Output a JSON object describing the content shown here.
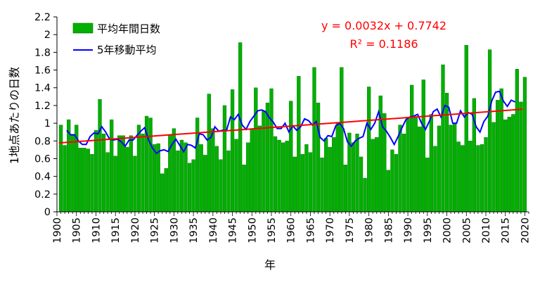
{
  "chart_data": {
    "type": "bar",
    "xlabel": "年",
    "ylabel": "1地点あたりの日数",
    "ylim": [
      0,
      2.2
    ],
    "ytick_step": 0.2,
    "ytick_labels": [
      "0",
      "0.2",
      "0.4",
      "0.6",
      "0.8",
      "1",
      "1.2",
      "1.4",
      "1.6",
      "1.8",
      "2",
      "2.2"
    ],
    "xlim": [
      1900,
      2021
    ],
    "xtick_labels": [
      "1900",
      "1905",
      "1910",
      "1915",
      "1920",
      "1925",
      "1930",
      "1935",
      "1940",
      "1945",
      "1950",
      "1955",
      "1960",
      "1965",
      "1970",
      "1975",
      "1980",
      "1985",
      "1990",
      "1995",
      "2000",
      "2005",
      "2010",
      "2015",
      "2020"
    ],
    "grid": false,
    "legend_position": "top-left",
    "series": [
      {
        "name": "平均年間日数",
        "kind": "bar",
        "color": "#00b000",
        "x": [
          1901,
          1902,
          1903,
          1904,
          1905,
          1906,
          1907,
          1908,
          1909,
          1910,
          1911,
          1912,
          1913,
          1914,
          1915,
          1916,
          1917,
          1918,
          1919,
          1920,
          1921,
          1922,
          1923,
          1924,
          1925,
          1926,
          1927,
          1928,
          1929,
          1930,
          1931,
          1932,
          1933,
          1934,
          1935,
          1936,
          1937,
          1938,
          1939,
          1940,
          1941,
          1942,
          1943,
          1944,
          1945,
          1946,
          1947,
          1948,
          1949,
          1950,
          1951,
          1952,
          1953,
          1954,
          1955,
          1956,
          1957,
          1958,
          1959,
          1960,
          1961,
          1962,
          1963,
          1964,
          1965,
          1966,
          1967,
          1968,
          1969,
          1970,
          1971,
          1972,
          1973,
          1974,
          1975,
          1976,
          1977,
          1978,
          1979,
          1980,
          1981,
          1982,
          1983,
          1984,
          1985,
          1986,
          1987,
          1988,
          1989,
          1990,
          1991,
          1992,
          1993,
          1994,
          1995,
          1996,
          1997,
          1998,
          1999,
          2000,
          2001,
          2002,
          2003,
          2004,
          2005,
          2006,
          2007,
          2008,
          2009,
          2010,
          2011,
          2012,
          2013,
          2014,
          2015,
          2016,
          2017,
          2018,
          2019,
          2020
        ],
        "values": [
          0.98,
          0.75,
          1.04,
          0.86,
          0.98,
          0.72,
          0.72,
          0.71,
          0.65,
          0.92,
          1.27,
          0.88,
          0.67,
          1.04,
          0.63,
          0.86,
          0.86,
          0.73,
          0.86,
          0.63,
          0.98,
          0.88,
          1.08,
          1.06,
          0.76,
          0.77,
          0.43,
          0.49,
          0.87,
          0.94,
          0.69,
          0.81,
          0.78,
          0.55,
          0.59,
          1.06,
          0.76,
          0.64,
          1.33,
          0.94,
          0.74,
          0.59,
          1.2,
          0.69,
          1.38,
          0.82,
          1.91,
          0.53,
          0.78,
          0.94,
          1.4,
          0.97,
          1.14,
          1.23,
          1.39,
          0.85,
          0.81,
          0.78,
          0.8,
          1.25,
          0.62,
          1.53,
          0.65,
          0.76,
          0.67,
          1.63,
          1.23,
          0.61,
          0.83,
          0.73,
          0.84,
          1.0,
          1.63,
          0.53,
          0.89,
          0.78,
          0.88,
          0.62,
          0.38,
          1.41,
          0.82,
          0.84,
          1.31,
          1.11,
          0.47,
          0.7,
          0.65,
          0.98,
          0.88,
          1.07,
          1.43,
          1.07,
          0.96,
          1.49,
          0.61,
          1.1,
          0.74,
          0.97,
          1.66,
          1.34,
          0.98,
          1.0,
          0.79,
          0.75,
          1.88,
          0.8,
          1.28,
          0.75,
          0.76,
          0.84,
          1.83,
          1.01,
          1.26,
          1.39,
          1.04,
          1.07,
          1.1,
          1.61,
          1.24,
          1.52
        ]
      },
      {
        "name": "5年移動平均",
        "kind": "line",
        "color": "#0000ff",
        "x": [
          1903,
          1904,
          1905,
          1906,
          1907,
          1908,
          1909,
          1910,
          1911,
          1912,
          1913,
          1914,
          1915,
          1916,
          1917,
          1918,
          1919,
          1920,
          1921,
          1922,
          1923,
          1924,
          1925,
          1926,
          1927,
          1928,
          1929,
          1930,
          1931,
          1932,
          1933,
          1934,
          1935,
          1936,
          1937,
          1938,
          1939,
          1940,
          1941,
          1942,
          1943,
          1944,
          1945,
          1946,
          1947,
          1948,
          1949,
          1950,
          1951,
          1952,
          1953,
          1954,
          1955,
          1956,
          1957,
          1958,
          1959,
          1960,
          1961,
          1962,
          1963,
          1964,
          1965,
          1966,
          1967,
          1968,
          1969,
          1970,
          1971,
          1972,
          1973,
          1974,
          1975,
          1976,
          1977,
          1978,
          1979,
          1980,
          1981,
          1982,
          1983,
          1984,
          1985,
          1986,
          1987,
          1988,
          1989,
          1990,
          1991,
          1992,
          1993,
          1994,
          1995,
          1996,
          1997,
          1998,
          1999,
          2000,
          2001,
          2002,
          2003,
          2004,
          2005,
          2006,
          2007,
          2008,
          2009,
          2010,
          2011,
          2012,
          2013,
          2014,
          2015,
          2016,
          2017,
          2018
        ],
        "values": [
          0.92,
          0.87,
          0.87,
          0.8,
          0.76,
          0.76,
          0.85,
          0.89,
          0.88,
          0.96,
          0.9,
          0.82,
          0.81,
          0.82,
          0.79,
          0.74,
          0.81,
          0.81,
          0.86,
          0.91,
          0.95,
          0.81,
          0.72,
          0.66,
          0.69,
          0.7,
          0.68,
          0.76,
          0.82,
          0.75,
          0.68,
          0.76,
          0.75,
          0.72,
          0.88,
          0.87,
          0.81,
          0.84,
          0.96,
          0.91,
          0.92,
          0.92,
          1.07,
          1.04,
          1.1,
          0.98,
          0.93,
          1.02,
          1.08,
          1.14,
          1.15,
          1.13,
          1.06,
          1.01,
          0.94,
          0.94,
          1.0,
          0.9,
          0.97,
          0.92,
          0.96,
          1.05,
          1.03,
          0.98,
          1.02,
          0.84,
          0.8,
          0.86,
          0.85,
          0.97,
          1.0,
          0.94,
          0.79,
          0.74,
          0.8,
          0.83,
          0.85,
          1.0,
          0.93,
          1.0,
          1.13,
          0.96,
          0.91,
          0.84,
          0.76,
          0.85,
          0.95,
          1.04,
          1.07,
          1.08,
          1.1,
          1.0,
          0.93,
          1.02,
          1.13,
          1.16,
          1.07,
          1.2,
          1.18,
          1.0,
          1.0,
          1.14,
          1.07,
          1.12,
          1.1,
          0.96,
          0.9,
          1.02,
          1.08,
          1.25,
          1.35,
          1.36,
          1.25,
          1.19,
          1.26,
          1.24
        ]
      },
      {
        "name": "trend",
        "kind": "trendline",
        "color": "#ff0000",
        "slope": 0.0032,
        "intercept": 0.7742,
        "index_start_year": 1900
      }
    ],
    "annotations": {
      "equation": "y = 0.0032x + 0.7742",
      "r_squared": "R² = 0.1186",
      "color": "#ff0000"
    }
  }
}
